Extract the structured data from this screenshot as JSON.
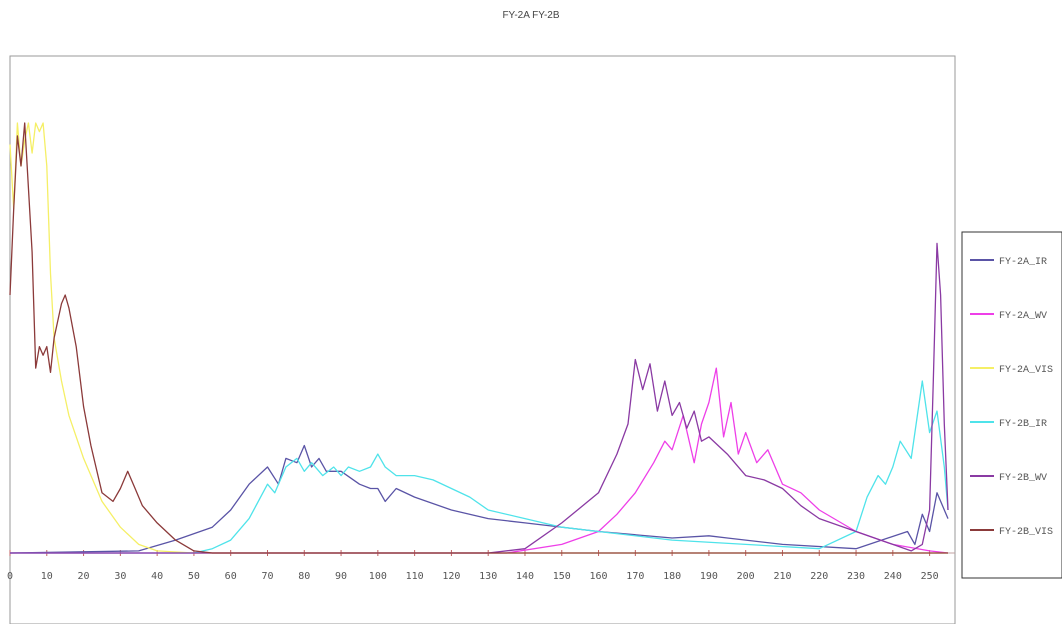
{
  "chart_data": {
    "type": "line",
    "title": "FY-2A FY-2B",
    "xlim": [
      0,
      255
    ],
    "ylim": [
      0,
      1
    ],
    "grid": false,
    "legend_position": "right",
    "x_ticks": [
      "0",
      "10",
      "20",
      "30",
      "40",
      "50",
      "60",
      "70",
      "80",
      "90",
      "100",
      "110",
      "120",
      "130",
      "140",
      "150",
      "160",
      "170",
      "180",
      "190",
      "200",
      "210",
      "220",
      "230",
      "240",
      "250"
    ],
    "series": [
      {
        "name": "FY-2A_IR",
        "color": "#5a54a6",
        "x": [
          0,
          35,
          45,
          55,
          60,
          65,
          70,
          73,
          75,
          78,
          80,
          82,
          84,
          86,
          90,
          95,
          98,
          100,
          102,
          105,
          110,
          120,
          130,
          140,
          160,
          180,
          190,
          195,
          210,
          230,
          244,
          246,
          248,
          250,
          252,
          255
        ],
        "y": [
          0,
          0.005,
          0.03,
          0.06,
          0.1,
          0.16,
          0.2,
          0.16,
          0.22,
          0.21,
          0.25,
          0.2,
          0.22,
          0.19,
          0.19,
          0.16,
          0.15,
          0.15,
          0.12,
          0.15,
          0.13,
          0.1,
          0.08,
          0.07,
          0.05,
          0.035,
          0.04,
          0.035,
          0.02,
          0.01,
          0.05,
          0.02,
          0.09,
          0.05,
          0.14,
          0.08
        ]
      },
      {
        "name": "FY-2A_WV",
        "color": "#ee3fe8",
        "x": [
          0,
          135,
          150,
          160,
          165,
          170,
          175,
          178,
          180,
          183,
          186,
          188,
          190,
          192,
          194,
          196,
          198,
          200,
          203,
          206,
          210,
          215,
          220,
          230,
          240,
          250,
          255
        ],
        "y": [
          0,
          0,
          0.02,
          0.05,
          0.09,
          0.14,
          0.21,
          0.26,
          0.24,
          0.32,
          0.21,
          0.3,
          0.35,
          0.43,
          0.27,
          0.35,
          0.23,
          0.28,
          0.21,
          0.24,
          0.16,
          0.14,
          0.1,
          0.05,
          0.02,
          0.005,
          0
        ]
      },
      {
        "name": "FY-2A_VIS",
        "color": "#f5ef66",
        "x": [
          0,
          1,
          2,
          3,
          4,
          5,
          6,
          7,
          8,
          9,
          10,
          11,
          12,
          14,
          16,
          20,
          25,
          30,
          35,
          40,
          50,
          255
        ],
        "y": [
          0.95,
          0.8,
          1.0,
          0.9,
          0.96,
          1.0,
          0.93,
          1.0,
          0.98,
          1.0,
          0.9,
          0.65,
          0.5,
          0.4,
          0.32,
          0.22,
          0.12,
          0.06,
          0.02,
          0.005,
          0,
          0
        ]
      },
      {
        "name": "FY-2B_IR",
        "color": "#4fe3ea",
        "x": [
          0,
          50,
          55,
          60,
          65,
          70,
          72,
          75,
          78,
          80,
          82,
          85,
          88,
          90,
          92,
          95,
          98,
          100,
          102,
          105,
          110,
          115,
          120,
          125,
          130,
          140,
          150,
          160,
          180,
          200,
          220,
          230,
          233,
          236,
          238,
          240,
          242,
          245,
          248,
          250,
          252,
          254,
          255
        ],
        "y": [
          0,
          0,
          0.01,
          0.03,
          0.08,
          0.16,
          0.14,
          0.2,
          0.22,
          0.19,
          0.21,
          0.18,
          0.2,
          0.18,
          0.2,
          0.19,
          0.2,
          0.23,
          0.2,
          0.18,
          0.18,
          0.17,
          0.15,
          0.13,
          0.1,
          0.08,
          0.06,
          0.05,
          0.03,
          0.02,
          0.01,
          0.05,
          0.13,
          0.18,
          0.16,
          0.2,
          0.26,
          0.22,
          0.4,
          0.28,
          0.33,
          0.2,
          0.1
        ]
      },
      {
        "name": "FY-2B_WV",
        "color": "#8a3aa3",
        "x": [
          0,
          130,
          140,
          150,
          160,
          165,
          168,
          170,
          172,
          174,
          176,
          178,
          180,
          182,
          184,
          186,
          188,
          190,
          195,
          200,
          205,
          210,
          215,
          220,
          230,
          240,
          245,
          248,
          250,
          251,
          252,
          253,
          254,
          255
        ],
        "y": [
          0,
          0,
          0.01,
          0.07,
          0.14,
          0.23,
          0.3,
          0.45,
          0.38,
          0.44,
          0.33,
          0.4,
          0.32,
          0.35,
          0.29,
          0.33,
          0.26,
          0.27,
          0.23,
          0.18,
          0.17,
          0.15,
          0.11,
          0.08,
          0.05,
          0.02,
          0.005,
          0.02,
          0.1,
          0.4,
          0.72,
          0.6,
          0.3,
          0.1
        ]
      },
      {
        "name": "FY-2B_VIS",
        "color": "#8b3a3a",
        "x": [
          0,
          1,
          2,
          3,
          4,
          5,
          6,
          7,
          8,
          9,
          10,
          11,
          12,
          13,
          14,
          15,
          16,
          18,
          20,
          22,
          25,
          28,
          30,
          32,
          34,
          36,
          40,
          45,
          50,
          55,
          255
        ],
        "y": [
          0.6,
          0.8,
          0.97,
          0.9,
          1.0,
          0.85,
          0.7,
          0.43,
          0.48,
          0.46,
          0.48,
          0.42,
          0.5,
          0.54,
          0.58,
          0.6,
          0.57,
          0.48,
          0.34,
          0.25,
          0.14,
          0.12,
          0.15,
          0.19,
          0.15,
          0.11,
          0.07,
          0.03,
          0.005,
          0,
          0
        ]
      }
    ]
  }
}
